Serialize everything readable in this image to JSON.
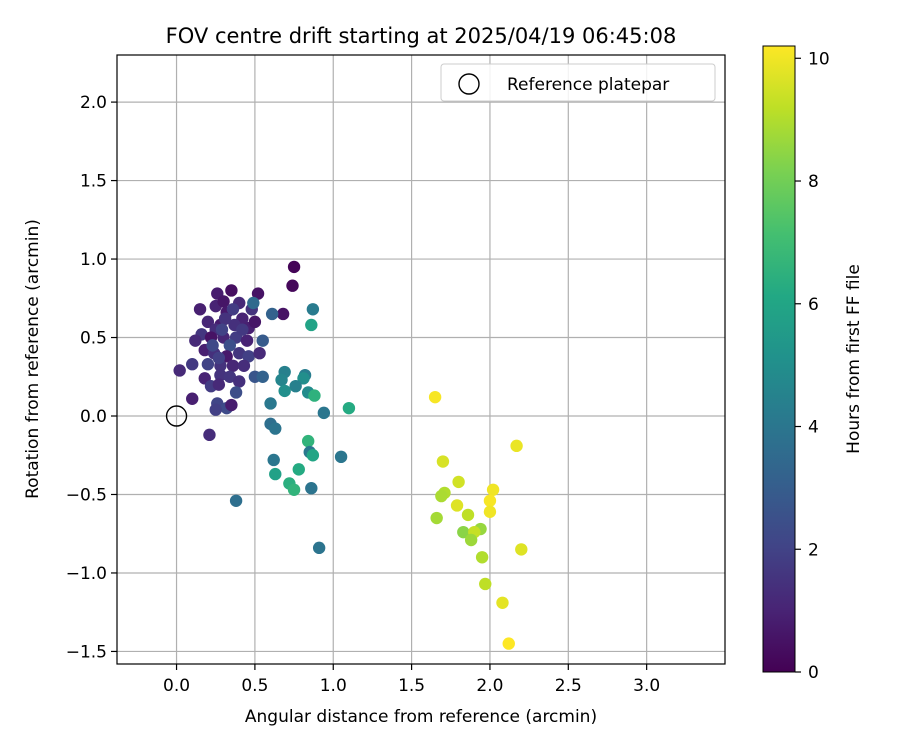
{
  "chart_data": {
    "type": "scatter",
    "title": "FOV centre drift starting at 2025/04/19 06:45:08",
    "xlabel": "Angular distance from reference (arcmin)",
    "ylabel": "Rotation from reference (arcmin)",
    "xlim": [
      -0.38,
      3.5
    ],
    "ylim": [
      -1.58,
      2.3
    ],
    "xticks": [
      "0.0",
      "0.5",
      "1.0",
      "1.5",
      "2.0",
      "2.5",
      "3.0"
    ],
    "yticks": [
      "−1.5",
      "−1.0",
      "−0.5",
      "0.0",
      "0.5",
      "1.0",
      "1.5",
      "2.0"
    ],
    "grid": true,
    "legend": {
      "placement": "top-right",
      "entries": [
        "Reference platepar"
      ]
    },
    "reference_point": {
      "x": 0.0,
      "y": 0.0
    },
    "colorbar": {
      "label": "Hours from first FF file",
      "colormap": "viridis",
      "min": 0,
      "max": 10.2,
      "ticks": [
        "0",
        "2",
        "4",
        "6",
        "8",
        "10"
      ]
    },
    "series": [
      {
        "points": [
          {
            "x": 0.75,
            "y": 0.95,
            "h": 0.1
          },
          {
            "x": 0.74,
            "y": 0.83,
            "h": 0.2
          },
          {
            "x": 0.68,
            "y": 0.65,
            "h": 0.5
          },
          {
            "x": 0.52,
            "y": 0.78,
            "h": 0.5
          },
          {
            "x": 0.35,
            "y": 0.8,
            "h": 0.4
          },
          {
            "x": 0.26,
            "y": 0.78,
            "h": 0.8
          },
          {
            "x": 0.15,
            "y": 0.68,
            "h": 0.9
          },
          {
            "x": 0.25,
            "y": 0.7,
            "h": 1.0
          },
          {
            "x": 0.3,
            "y": 0.73,
            "h": 0.6
          },
          {
            "x": 0.4,
            "y": 0.72,
            "h": 1.2
          },
          {
            "x": 0.48,
            "y": 0.68,
            "h": 1.5
          },
          {
            "x": 0.42,
            "y": 0.62,
            "h": 1.0
          },
          {
            "x": 0.32,
            "y": 0.66,
            "h": 0.7
          },
          {
            "x": 0.2,
            "y": 0.6,
            "h": 1.1
          },
          {
            "x": 0.28,
            "y": 0.58,
            "h": 0.8
          },
          {
            "x": 0.37,
            "y": 0.58,
            "h": 1.4
          },
          {
            "x": 0.46,
            "y": 0.56,
            "h": 0.9
          },
          {
            "x": 0.5,
            "y": 0.6,
            "h": 0.6
          },
          {
            "x": 0.25,
            "y": 0.55,
            "h": 1.3
          },
          {
            "x": 0.16,
            "y": 0.52,
            "h": 1.6
          },
          {
            "x": 0.12,
            "y": 0.48,
            "h": 1.2
          },
          {
            "x": 0.22,
            "y": 0.5,
            "h": 0.5
          },
          {
            "x": 0.3,
            "y": 0.5,
            "h": 1.1
          },
          {
            "x": 0.38,
            "y": 0.5,
            "h": 1.8
          },
          {
            "x": 0.45,
            "y": 0.48,
            "h": 1.0
          },
          {
            "x": 0.34,
            "y": 0.45,
            "h": 2.5
          },
          {
            "x": 0.55,
            "y": 0.48,
            "h": 2.9
          },
          {
            "x": 0.18,
            "y": 0.42,
            "h": 0.9
          },
          {
            "x": 0.24,
            "y": 0.4,
            "h": 1.4
          },
          {
            "x": 0.32,
            "y": 0.38,
            "h": 0.7
          },
          {
            "x": 0.4,
            "y": 0.4,
            "h": 1.6
          },
          {
            "x": 0.46,
            "y": 0.38,
            "h": 1.9
          },
          {
            "x": 0.53,
            "y": 0.4,
            "h": 1.2
          },
          {
            "x": 0.2,
            "y": 0.33,
            "h": 2.0
          },
          {
            "x": 0.1,
            "y": 0.33,
            "h": 1.7
          },
          {
            "x": 0.28,
            "y": 0.32,
            "h": 1.5
          },
          {
            "x": 0.36,
            "y": 0.32,
            "h": 1.1
          },
          {
            "x": 0.43,
            "y": 0.32,
            "h": 1.3
          },
          {
            "x": 0.02,
            "y": 0.29,
            "h": 1.2
          },
          {
            "x": 0.18,
            "y": 0.24,
            "h": 1.0
          },
          {
            "x": 0.28,
            "y": 0.26,
            "h": 1.5
          },
          {
            "x": 0.34,
            "y": 0.25,
            "h": 1.6
          },
          {
            "x": 0.4,
            "y": 0.22,
            "h": 1.4
          },
          {
            "x": 0.5,
            "y": 0.25,
            "h": 2.7
          },
          {
            "x": 0.55,
            "y": 0.25,
            "h": 3.2
          },
          {
            "x": 0.22,
            "y": 0.19,
            "h": 1.8
          },
          {
            "x": 0.27,
            "y": 0.2,
            "h": 1.2
          },
          {
            "x": 0.38,
            "y": 0.15,
            "h": 2.4
          },
          {
            "x": 0.1,
            "y": 0.11,
            "h": 0.9
          },
          {
            "x": 0.26,
            "y": 0.08,
            "h": 2.1
          },
          {
            "x": 0.32,
            "y": 0.05,
            "h": 2.3
          },
          {
            "x": 0.35,
            "y": 0.07,
            "h": 0.8
          },
          {
            "x": 0.25,
            "y": 0.04,
            "h": 1.9
          },
          {
            "x": 0.21,
            "y": -0.12,
            "h": 1.3
          },
          {
            "x": 0.31,
            "y": 0.62,
            "h": 1.5
          },
          {
            "x": 0.29,
            "y": 0.55,
            "h": 2.0
          },
          {
            "x": 0.42,
            "y": 0.55,
            "h": 1.7
          },
          {
            "x": 0.36,
            "y": 0.68,
            "h": 1.8
          },
          {
            "x": 0.23,
            "y": 0.45,
            "h": 2.2
          },
          {
            "x": 0.27,
            "y": 0.37,
            "h": 1.9
          },
          {
            "x": 0.49,
            "y": 0.72,
            "h": 3.5
          },
          {
            "x": 0.61,
            "y": 0.65,
            "h": 3.2
          },
          {
            "x": 0.87,
            "y": 0.68,
            "h": 4.2
          },
          {
            "x": 0.86,
            "y": 0.58,
            "h": 5.9
          },
          {
            "x": 0.69,
            "y": 0.28,
            "h": 4.4
          },
          {
            "x": 0.67,
            "y": 0.23,
            "h": 4.6
          },
          {
            "x": 0.82,
            "y": 0.26,
            "h": 4.3
          },
          {
            "x": 0.81,
            "y": 0.24,
            "h": 5.0
          },
          {
            "x": 0.76,
            "y": 0.19,
            "h": 4.4
          },
          {
            "x": 0.69,
            "y": 0.16,
            "h": 5.0
          },
          {
            "x": 0.84,
            "y": 0.15,
            "h": 4.9
          },
          {
            "x": 0.88,
            "y": 0.13,
            "h": 6.5
          },
          {
            "x": 0.6,
            "y": 0.08,
            "h": 4.1
          },
          {
            "x": 0.94,
            "y": 0.02,
            "h": 4.0
          },
          {
            "x": 1.1,
            "y": 0.05,
            "h": 6.2
          },
          {
            "x": 0.6,
            "y": -0.05,
            "h": 3.7
          },
          {
            "x": 0.63,
            "y": -0.08,
            "h": 3.9
          },
          {
            "x": 0.84,
            "y": -0.16,
            "h": 6.6
          },
          {
            "x": 0.85,
            "y": -0.23,
            "h": 4.1
          },
          {
            "x": 0.87,
            "y": -0.25,
            "h": 6.0
          },
          {
            "x": 1.05,
            "y": -0.26,
            "h": 4.0
          },
          {
            "x": 0.62,
            "y": -0.28,
            "h": 4.0
          },
          {
            "x": 0.78,
            "y": -0.34,
            "h": 6.2
          },
          {
            "x": 0.63,
            "y": -0.37,
            "h": 5.8
          },
          {
            "x": 0.72,
            "y": -0.43,
            "h": 6.4
          },
          {
            "x": 0.75,
            "y": -0.47,
            "h": 6.6
          },
          {
            "x": 0.86,
            "y": -0.46,
            "h": 3.9
          },
          {
            "x": 0.38,
            "y": -0.54,
            "h": 3.7
          },
          {
            "x": 0.91,
            "y": -0.84,
            "h": 3.9
          },
          {
            "x": 1.65,
            "y": 0.12,
            "h": 10.1
          },
          {
            "x": 2.17,
            "y": -0.19,
            "h": 9.9
          },
          {
            "x": 1.7,
            "y": -0.29,
            "h": 9.6
          },
          {
            "x": 1.8,
            "y": -0.42,
            "h": 9.5
          },
          {
            "x": 2.02,
            "y": -0.47,
            "h": 10.0
          },
          {
            "x": 1.71,
            "y": -0.49,
            "h": 9.0
          },
          {
            "x": 1.69,
            "y": -0.51,
            "h": 8.9
          },
          {
            "x": 2.0,
            "y": -0.54,
            "h": 10.1
          },
          {
            "x": 1.79,
            "y": -0.57,
            "h": 9.7
          },
          {
            "x": 2.0,
            "y": -0.61,
            "h": 10.0
          },
          {
            "x": 1.86,
            "y": -0.63,
            "h": 9.2
          },
          {
            "x": 1.66,
            "y": -0.65,
            "h": 8.8
          },
          {
            "x": 1.94,
            "y": -0.72,
            "h": 8.6
          },
          {
            "x": 1.83,
            "y": -0.74,
            "h": 8.4
          },
          {
            "x": 1.9,
            "y": -0.74,
            "h": 9.3
          },
          {
            "x": 1.88,
            "y": -0.79,
            "h": 8.7
          },
          {
            "x": 2.2,
            "y": -0.85,
            "h": 9.7
          },
          {
            "x": 1.95,
            "y": -0.9,
            "h": 9.0
          },
          {
            "x": 1.97,
            "y": -1.07,
            "h": 9.2
          },
          {
            "x": 2.08,
            "y": -1.19,
            "h": 9.8
          },
          {
            "x": 2.12,
            "y": -1.45,
            "h": 10.2
          }
        ]
      }
    ]
  }
}
